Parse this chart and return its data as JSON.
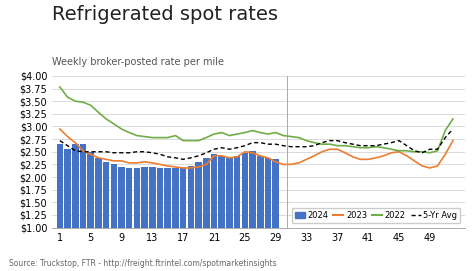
{
  "title": "Refrigerated spot rates",
  "subtitle": "Weekly broker-posted rate per mile",
  "source": "Source: Truckstop, FTR - http://freight.ftrintel.com/spotmarketinsights",
  "ylim": [
    1.0,
    4.0
  ],
  "yticks": [
    1.0,
    1.25,
    1.5,
    1.75,
    2.0,
    2.25,
    2.5,
    2.75,
    3.0,
    3.25,
    3.5,
    3.75,
    4.0
  ],
  "xticks_left": [
    1,
    5,
    9,
    13,
    17,
    21,
    25,
    29
  ],
  "xticks_right": [
    33,
    37,
    41,
    45,
    49
  ],
  "bar_weeks": [
    1,
    2,
    3,
    4,
    5,
    6,
    7,
    8,
    9,
    10,
    11,
    12,
    13,
    14,
    15,
    16,
    17,
    18,
    19,
    20,
    21,
    22,
    23,
    24,
    25,
    26,
    27,
    28,
    29
  ],
  "bar_color": "#4472C4",
  "bar_values": [
    2.65,
    2.55,
    2.65,
    2.65,
    2.5,
    2.38,
    2.3,
    2.25,
    2.2,
    2.18,
    2.18,
    2.2,
    2.2,
    2.18,
    2.18,
    2.18,
    2.18,
    2.22,
    2.3,
    2.38,
    2.45,
    2.42,
    2.38,
    2.42,
    2.48,
    2.52,
    2.42,
    2.38,
    2.35
  ],
  "line2023_x": [
    1,
    2,
    3,
    4,
    5,
    6,
    7,
    8,
    9,
    10,
    11,
    12,
    13,
    14,
    15,
    16,
    17,
    18,
    19,
    20,
    21,
    22,
    23,
    24,
    25,
    26,
    27,
    28,
    29,
    30,
    31,
    32,
    33,
    34,
    35,
    36,
    37,
    38,
    39,
    40,
    41,
    42,
    43,
    44,
    45,
    46,
    47,
    48,
    49,
    50,
    51,
    52
  ],
  "line2023_y": [
    2.95,
    2.8,
    2.68,
    2.52,
    2.45,
    2.38,
    2.35,
    2.32,
    2.32,
    2.28,
    2.28,
    2.3,
    2.28,
    2.25,
    2.22,
    2.2,
    2.18,
    2.18,
    2.2,
    2.25,
    2.42,
    2.42,
    2.38,
    2.4,
    2.5,
    2.48,
    2.42,
    2.38,
    2.3,
    2.25,
    2.25,
    2.28,
    2.35,
    2.42,
    2.5,
    2.55,
    2.55,
    2.48,
    2.4,
    2.35,
    2.35,
    2.38,
    2.42,
    2.48,
    2.5,
    2.42,
    2.32,
    2.22,
    2.18,
    2.22,
    2.45,
    2.72
  ],
  "line2022_x": [
    1,
    2,
    3,
    4,
    5,
    6,
    7,
    8,
    9,
    10,
    11,
    12,
    13,
    14,
    15,
    16,
    17,
    18,
    19,
    20,
    21,
    22,
    23,
    24,
    25,
    26,
    27,
    28,
    29,
    30,
    31,
    32,
    33,
    34,
    35,
    36,
    37,
    38,
    39,
    40,
    41,
    42,
    43,
    44,
    45,
    46,
    47,
    48,
    49,
    50,
    51,
    52
  ],
  "line2022_y": [
    3.78,
    3.58,
    3.5,
    3.48,
    3.42,
    3.28,
    3.15,
    3.05,
    2.95,
    2.88,
    2.82,
    2.8,
    2.78,
    2.78,
    2.78,
    2.82,
    2.72,
    2.72,
    2.72,
    2.78,
    2.85,
    2.88,
    2.82,
    2.85,
    2.88,
    2.92,
    2.88,
    2.85,
    2.88,
    2.82,
    2.8,
    2.78,
    2.72,
    2.68,
    2.65,
    2.65,
    2.62,
    2.62,
    2.6,
    2.58,
    2.58,
    2.6,
    2.58,
    2.55,
    2.52,
    2.52,
    2.5,
    2.5,
    2.48,
    2.52,
    2.92,
    3.15
  ],
  "line5yr_x": [
    1,
    2,
    3,
    4,
    5,
    6,
    7,
    8,
    9,
    10,
    11,
    12,
    13,
    14,
    15,
    16,
    17,
    18,
    19,
    20,
    21,
    22,
    23,
    24,
    25,
    26,
    27,
    28,
    29,
    30,
    31,
    32,
    33,
    34,
    35,
    36,
    37,
    38,
    39,
    40,
    41,
    42,
    43,
    44,
    45,
    46,
    47,
    48,
    49,
    50,
    51,
    52
  ],
  "line5yr_y": [
    2.72,
    2.62,
    2.52,
    2.5,
    2.5,
    2.5,
    2.5,
    2.48,
    2.48,
    2.48,
    2.5,
    2.5,
    2.48,
    2.45,
    2.4,
    2.38,
    2.35,
    2.38,
    2.42,
    2.48,
    2.55,
    2.58,
    2.55,
    2.58,
    2.62,
    2.68,
    2.68,
    2.65,
    2.65,
    2.62,
    2.6,
    2.6,
    2.6,
    2.62,
    2.68,
    2.72,
    2.72,
    2.68,
    2.65,
    2.62,
    2.62,
    2.62,
    2.65,
    2.68,
    2.72,
    2.62,
    2.52,
    2.48,
    2.55,
    2.55,
    2.78,
    2.95
  ],
  "line2023_color": "#ED7D31",
  "line2022_color": "#70AD47",
  "line5yr_color": "#000000",
  "divider_x": 30.5,
  "bg_color": "#FFFFFF",
  "title_fontsize": 14,
  "subtitle_fontsize": 7,
  "tick_fontsize": 7,
  "source_fontsize": 5.5
}
